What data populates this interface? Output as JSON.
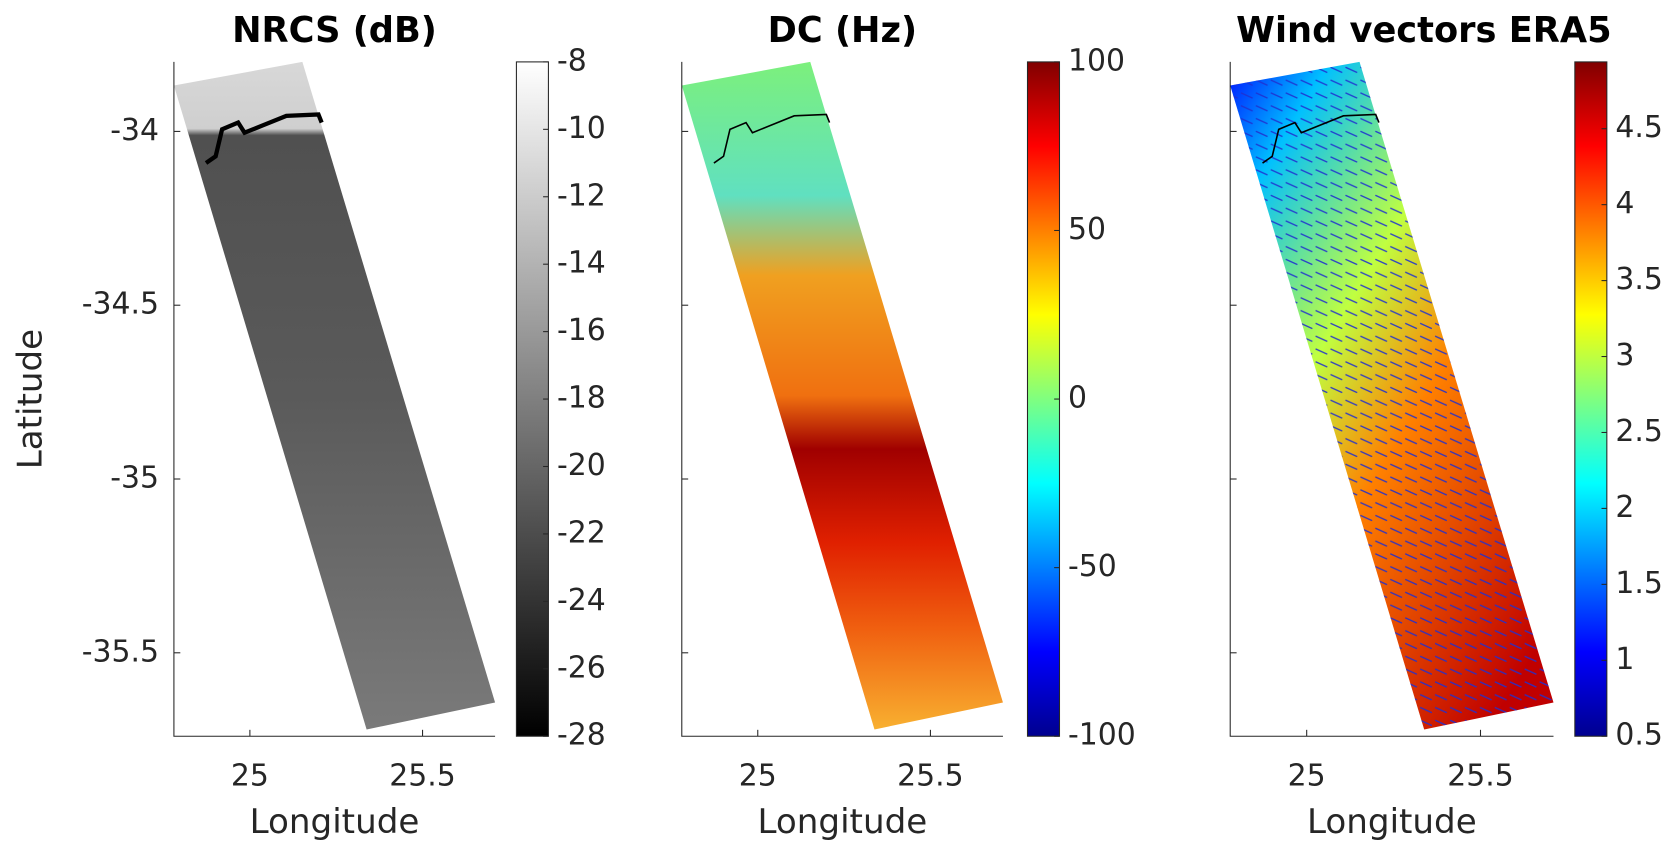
{
  "chart_data": [
    {
      "type": "swath-map",
      "title": "NRCS (dB)",
      "xlabel": "Longitude",
      "ylabel": "Latitude",
      "xlim": [
        24.78,
        25.71
      ],
      "xticks": [
        25,
        25.5
      ],
      "ylim": [
        -35.74,
        -33.8
      ],
      "yticks": [
        -34,
        -34.5,
        -35,
        -35.5
      ],
      "ytick_labels": true,
      "colormap": "gray",
      "clim": [
        -28,
        -8
      ],
      "cticks": [
        -8,
        -10,
        -12,
        -14,
        -16,
        -18,
        -20,
        -22,
        -24,
        -26,
        -28
      ],
      "vectors": false
    },
    {
      "type": "swath-map",
      "title": "DC (Hz)",
      "xlabel": "Longitude",
      "xlim": [
        24.78,
        25.71
      ],
      "xticks": [
        25,
        25.5
      ],
      "ylim": [
        -35.74,
        -33.8
      ],
      "yticks": [
        -34,
        -34.5,
        -35,
        -35.5
      ],
      "ytick_labels": false,
      "colormap": "jet",
      "clim": [
        -100,
        100
      ],
      "cticks": [
        100,
        50,
        0,
        -50,
        -100
      ],
      "vectors": false
    },
    {
      "type": "swath-map",
      "title": "Wind vectors ERA5",
      "xlabel": "Longitude",
      "xlim": [
        24.78,
        25.71
      ],
      "xticks": [
        25,
        25.5
      ],
      "ylim": [
        -35.74,
        -33.8
      ],
      "yticks": [
        -34,
        -34.5,
        -35,
        -35.5
      ],
      "ytick_labels": false,
      "colormap": "jet",
      "clim": [
        0.5,
        4.94
      ],
      "cticks": [
        4.5,
        4,
        3.5,
        3,
        2.5,
        2,
        1.5,
        1,
        0.5
      ],
      "vectors": true
    }
  ]
}
